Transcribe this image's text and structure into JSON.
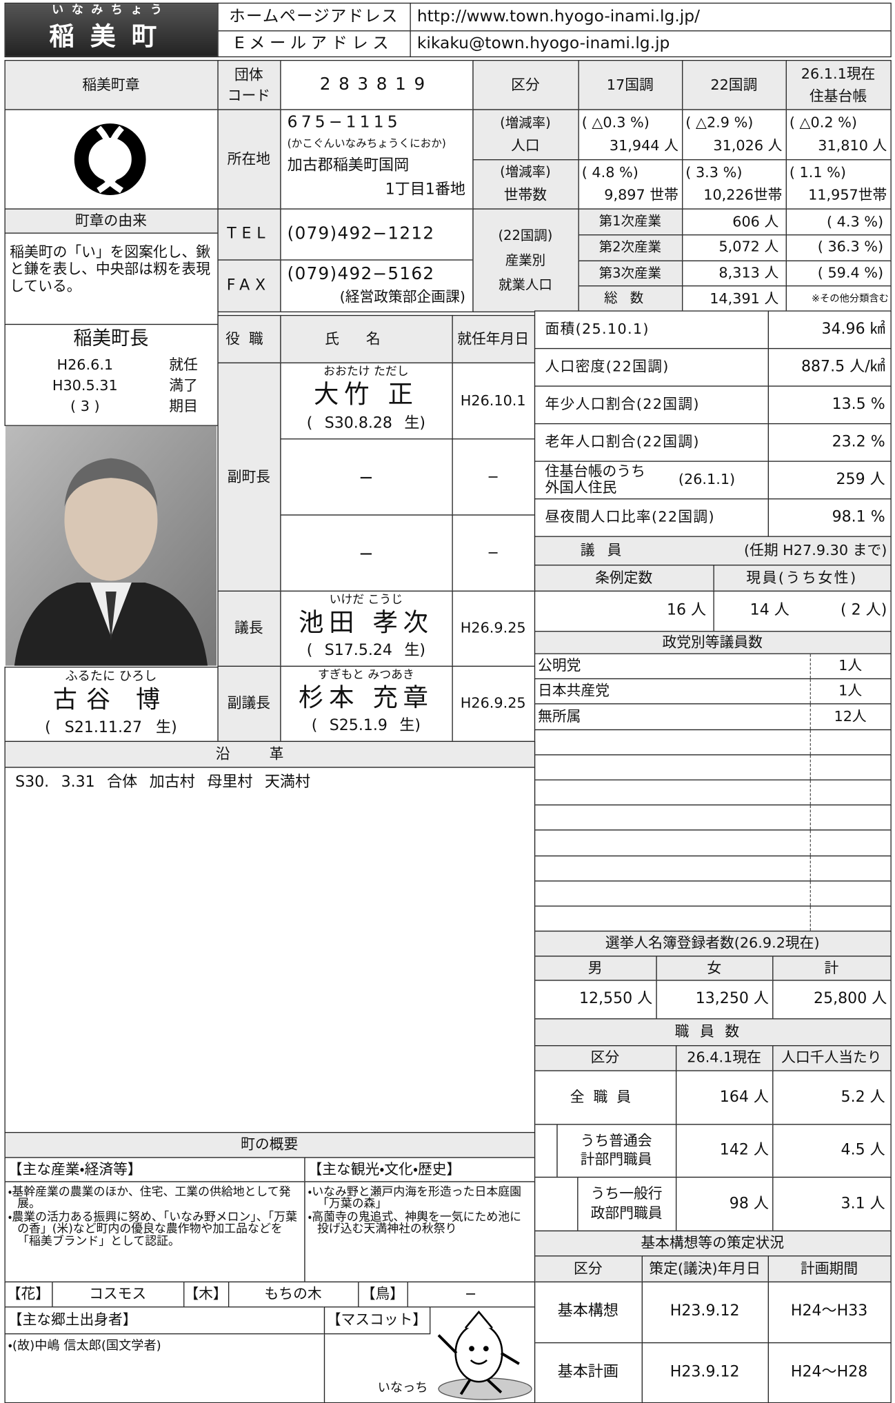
{
  "header": {
    "furigana": "いなみちょう",
    "name": "稲美町",
    "homepage_label": "ホームページアドレス",
    "homepage": "http://www.town.hyogo-inami.lg.jp/",
    "email_label": "Eメールアドレス",
    "email": "kikaku@town.hyogo-inami.lg.jp"
  },
  "emblem": {
    "title": "稲美町章",
    "origin_title": "町章の由来",
    "origin_text": "稲美町の「い」を図案化し、鍬と鎌を表し、中央部は籾を表現している。"
  },
  "info": {
    "code_label": [
      "団体",
      "コード"
    ],
    "code": "283819",
    "address_label": "所在地",
    "postal": "675−1115",
    "address_kana": "(かこぐんいなみちょうくにおか)",
    "address_1": "加古郡稲美町国岡",
    "address_2": "1丁目1番地",
    "tel_label": "TEL",
    "tel": "(079)492−1212",
    "fax_label": "FAX",
    "fax": "(079)492−5162",
    "fax_note": "(経営政策部企画課)"
  },
  "population": {
    "headers": [
      "区分",
      "17国調",
      "22国調"
    ],
    "header_current": [
      "26.1.1現在",
      "住基台帳"
    ],
    "rows": [
      {
        "rate_label": "(増減率)",
        "label": "人口",
        "rates": [
          "( △0.3 %)",
          "( △2.9 %)",
          "( △0.2 %)"
        ],
        "values": [
          "31,944 人",
          "31,026 人",
          "31,810 人"
        ]
      },
      {
        "rate_label": "(増減率)",
        "label": "世帯数",
        "rates": [
          "( 4.8 %)",
          "( 3.3 %)",
          "( 1.1 %)"
        ],
        "values": [
          "9,897 世帯",
          "10,226世帯",
          "11,957世帯"
        ]
      }
    ]
  },
  "employment": {
    "label": [
      "(22国調)",
      "産業別",
      "就業人口"
    ],
    "rows": [
      {
        "label": "第1次産業",
        "value": "606 人",
        "share": "( 4.3 %)"
      },
      {
        "label": "第2次産業",
        "value": "5,072 人",
        "share": "( 36.3 %)"
      },
      {
        "label": "第3次産業",
        "value": "8,313 人",
        "share": "( 59.4 %)"
      },
      {
        "label": "総数",
        "value": "14,391 人",
        "note": "※その他分類含む"
      }
    ]
  },
  "mayor": {
    "title": "稲美町長",
    "term": [
      {
        "date": "H26.6.1",
        "label": "就任"
      },
      {
        "date": "H30.5.31",
        "label": "満了"
      },
      {
        "date": "( 3 )",
        "label": "期目"
      }
    ],
    "furigana": "ふるたに ひろし",
    "name": "古谷 博",
    "birth": "( S21.11.27 生)"
  },
  "officials": {
    "headers": [
      "役職",
      "氏名",
      "就任年月日"
    ],
    "groups": [
      {
        "role": "副町長",
        "members": [
          {
            "furigana": "おおたけ ただし",
            "name": "大竹 正",
            "birth": "( S30.8.28 生)",
            "date": "H26.10.1"
          },
          {
            "name": "−",
            "date": "−"
          },
          {
            "name": "−",
            "date": "−"
          }
        ]
      },
      {
        "role": "議長",
        "members": [
          {
            "furigana": "いけだ こうじ",
            "name": "池田 孝次",
            "birth": "( S17.5.24 生)",
            "date": "H26.9.25"
          }
        ]
      },
      {
        "role": "副議長",
        "members": [
          {
            "furigana": "すぎもと みつあき",
            "name": "杉本 充章",
            "birth": "( S25.1.9 生)",
            "date": "H26.9.25"
          }
        ]
      }
    ]
  },
  "stats": {
    "rows": [
      {
        "label": "面積(25.10.1)",
        "value": "34.96 ㎢"
      },
      {
        "label": "人口密度(22国調)",
        "value": "887.5 人/㎢"
      },
      {
        "label": "年少人口割合(22国調)",
        "value": "13.5 %"
      },
      {
        "label": "老年人口割合(22国調)",
        "value": "23.2 %"
      },
      {
        "label": [
          "住基台帳のうち",
          "外国人住民"
        ],
        "date": "(26.1.1)",
        "value": "259 人"
      },
      {
        "label": "昼夜間人口比率(22国調)",
        "value": "98.1 %"
      }
    ]
  },
  "council": {
    "title": "議員",
    "term": "(任期 H27.9.30 まで)",
    "quota_label": "条例定数",
    "current_label": "現員(うち女性)",
    "quota": "16 人",
    "current": "14 人",
    "women": "( 2 人)",
    "parties_title": "政党別等議員数",
    "parties": [
      {
        "name": "公明党",
        "count": "1人"
      },
      {
        "name": "日本共産党",
        "count": "1人"
      },
      {
        "name": "無所属",
        "count": "12人"
      }
    ]
  },
  "voters": {
    "title": "選挙人名簿登録者数(26.9.2現在)",
    "headers": [
      "男",
      "女",
      "計"
    ],
    "values": [
      "12,550 人",
      "13,250 人",
      "25,800 人"
    ]
  },
  "staff": {
    "title": "職員数",
    "headers": [
      "区分",
      "26.4.1現在",
      "人口千人当たり"
    ],
    "rows": [
      {
        "label": [
          "全職員"
        ],
        "count": "164 人",
        "per_thousand": "5.2 人"
      },
      {
        "label": [
          "うち普通会",
          "計部門職員"
        ],
        "count": "142 人",
        "per_thousand": "4.5 人"
      },
      {
        "label": [
          "うち一般行",
          "政部門職員"
        ],
        "count": "98 人",
        "per_thousand": "3.1 人"
      }
    ]
  },
  "plans": {
    "title": "基本構想等の策定状況",
    "headers": [
      "区分",
      "策定(議決)年月日",
      "計画期間"
    ],
    "rows": [
      [
        "基本構想",
        "H23.9.12",
        "H24〜H33"
      ],
      [
        "基本計画",
        "H23.9.12",
        "H24〜H28"
      ]
    ]
  },
  "history": {
    "title": "沿革",
    "entries": [
      "S30. 3.31 合体 加古村 母里村 天満村"
    ]
  },
  "overview": {
    "title": "町の概要",
    "industry_title": "【主な産業・経済等】",
    "industry": [
      "・基幹産業の農業のほか、住宅、工業の供給地として発展。",
      "・農業の活力ある振興に努め、「いなみ野メロン」、「万葉の香」(米)など町内の優良な農作物や加工品などを「稲美ブランド」として認証。"
    ],
    "tourism_title": "【主な観光・文化・歴史】",
    "tourism": [
      "・いなみ野と瀬戸内海を形造った日本庭園「万葉の森」",
      "・高薗寺の鬼追式、神輿を一気にため池に投げ込む天満神社の秋祭り"
    ],
    "flower_label": "【花】",
    "flower": "コスモス",
    "tree_label": "【木】",
    "tree": "もちの木",
    "bird_label": "【鳥】",
    "bird": "−",
    "natives_title": "【主な郷土出身者】",
    "natives": [
      "・(故)中嶋 信太郎(国文学者)"
    ],
    "mascot_title": "【マスコット】",
    "mascot_name": "いなっち"
  }
}
